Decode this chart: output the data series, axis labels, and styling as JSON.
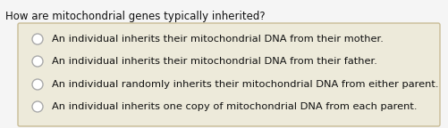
{
  "question": "How are mitochondrial genes typically inherited?",
  "options": [
    "An individual inherits their mitochondrial DNA from their mother.",
    "An individual inherits their mitochondrial DNA from their father.",
    "An individual randomly inherits their mitochondrial DNA from either parent.",
    "An individual inherits one copy of mitochondrial DNA from each parent."
  ],
  "fig_bg_color": "#f5f5f5",
  "box_bg_color": "#edeada",
  "box_edge_color": "#c8bc96",
  "question_fontsize": 8.5,
  "option_fontsize": 8.2,
  "question_color": "#111111",
  "option_color": "#111111",
  "radio_color": "#aaaaaa",
  "radio_linewidth": 1.0
}
